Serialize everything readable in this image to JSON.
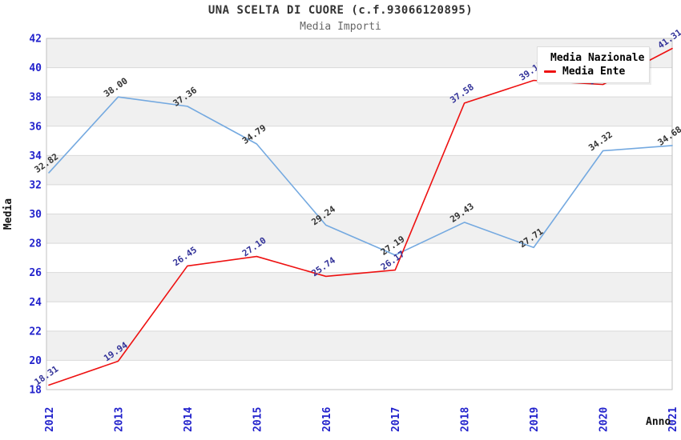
{
  "header": {
    "title": "UNA SCELTA DI CUORE (c.f.93066120895)",
    "subtitle": "Media Importi"
  },
  "legend": {
    "items": [
      {
        "label": "Media Nazionale",
        "color": "#74a9e0"
      },
      {
        "label": "Media Ente",
        "color": "#ee1111"
      }
    ]
  },
  "chart_data": {
    "type": "line",
    "title": "UNA SCELTA DI CUORE (c.f.93066120895)",
    "subtitle": "Media Importi",
    "xlabel": "Anno",
    "ylabel": "Media",
    "x": [
      "2012",
      "2013",
      "2014",
      "2015",
      "2016",
      "2017",
      "2018",
      "2019",
      "2020",
      "2021"
    ],
    "series": [
      {
        "name": "Media Nazionale",
        "color": "#74a9e0",
        "label_color": "#333333",
        "values": [
          32.82,
          38.0,
          37.36,
          34.79,
          29.24,
          27.19,
          29.43,
          27.71,
          34.32,
          34.68
        ],
        "point_labels": [
          "32.82",
          "38.00",
          "37.36",
          "34.79",
          "29.24",
          "27.19",
          "29.43",
          "27.71",
          "34.32",
          "34.68"
        ]
      },
      {
        "name": "Media Ente",
        "color": "#ee1111",
        "label_color": "#333399",
        "values": [
          18.31,
          19.94,
          26.45,
          27.1,
          25.74,
          26.17,
          37.58,
          39.13,
          38.85,
          41.31
        ],
        "point_labels": [
          "18.31",
          "19.94",
          "26.45",
          "27.10",
          "25.74",
          "26.17",
          "37.58",
          "39.13",
          "38.85",
          "41.31"
        ]
      }
    ],
    "ylim": [
      18,
      42
    ],
    "yticks": [
      18,
      20,
      22,
      24,
      26,
      28,
      30,
      32,
      34,
      36,
      38,
      40,
      42
    ],
    "ytick_step": 2,
    "grid": true,
    "band_colors": [
      "#f0f0f0",
      "#ffffff"
    ],
    "gridline_color": "#d9d9d9",
    "plot_border_color": "#c0c0c0",
    "tick_label_color": "#2222cc",
    "axis_title_color": "#111111",
    "legend_position": "top-right"
  }
}
